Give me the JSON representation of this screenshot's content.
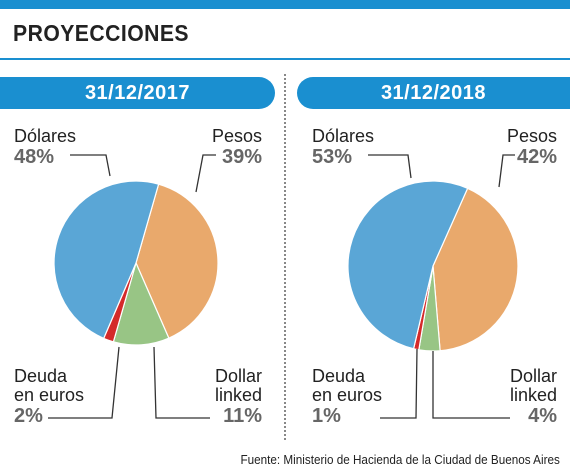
{
  "title": "PROYECCIONES",
  "source": "Fuente: Ministerio de Hacienda de la Ciudad de Buenos Aires",
  "colors": {
    "accent": "#1a8fd0",
    "dolares": "#5aa6d6",
    "pesos": "#e9a96c",
    "dollar_linked": "#98c585",
    "deuda_euros": "#d42a2a"
  },
  "chart_data": [
    {
      "type": "pie",
      "title": "31/12/2017",
      "slices": [
        {
          "key": "pesos",
          "label": "Pesos",
          "value": 39,
          "display": "39%"
        },
        {
          "key": "dollar_linked",
          "label": "Dollar linked",
          "label_lines": [
            "Dollar",
            "linked"
          ],
          "value": 11,
          "display": "11%"
        },
        {
          "key": "deuda_euros",
          "label": "Deuda en euros",
          "label_lines": [
            "Deuda",
            "en euros"
          ],
          "value": 2,
          "display": "2%"
        },
        {
          "key": "dolares",
          "label": "Dólares",
          "value": 48,
          "display": "48%"
        }
      ]
    },
    {
      "type": "pie",
      "title": "31/12/2018",
      "slices": [
        {
          "key": "pesos",
          "label": "Pesos",
          "value": 42,
          "display": "42%"
        },
        {
          "key": "dollar_linked",
          "label": "Dollar linked",
          "label_lines": [
            "Dollar",
            "linked"
          ],
          "value": 4,
          "display": "4%"
        },
        {
          "key": "deuda_euros",
          "label": "Deuda en euros",
          "label_lines": [
            "Deuda",
            "en euros"
          ],
          "value": 1,
          "display": "1%"
        },
        {
          "key": "dolares",
          "label": "Dólares",
          "value": 53,
          "display": "53%"
        }
      ]
    }
  ]
}
